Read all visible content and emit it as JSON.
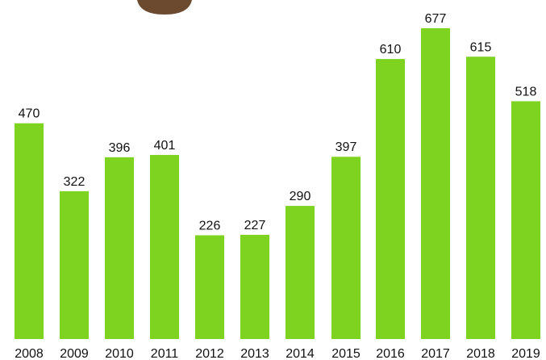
{
  "chart_data": {
    "type": "bar",
    "categories": [
      "2008",
      "2009",
      "2010",
      "2011",
      "2012",
      "2013",
      "2014",
      "2015",
      "2016",
      "2017",
      "2018",
      "2019"
    ],
    "values": [
      470,
      322,
      396,
      401,
      226,
      227,
      290,
      397,
      610,
      677,
      615,
      518
    ],
    "data_labels": [
      "470",
      "322",
      "396",
      "401",
      "226",
      "227",
      "290",
      "397",
      "610",
      "677",
      "615",
      "518"
    ],
    "title": "",
    "xlabel": "",
    "ylabel": "",
    "ylim": [
      0,
      677
    ],
    "grid": false,
    "legend": "none",
    "bar_color": "#7ed321",
    "label_color": "#111111",
    "decoration_color": "#6b4a2f"
  }
}
